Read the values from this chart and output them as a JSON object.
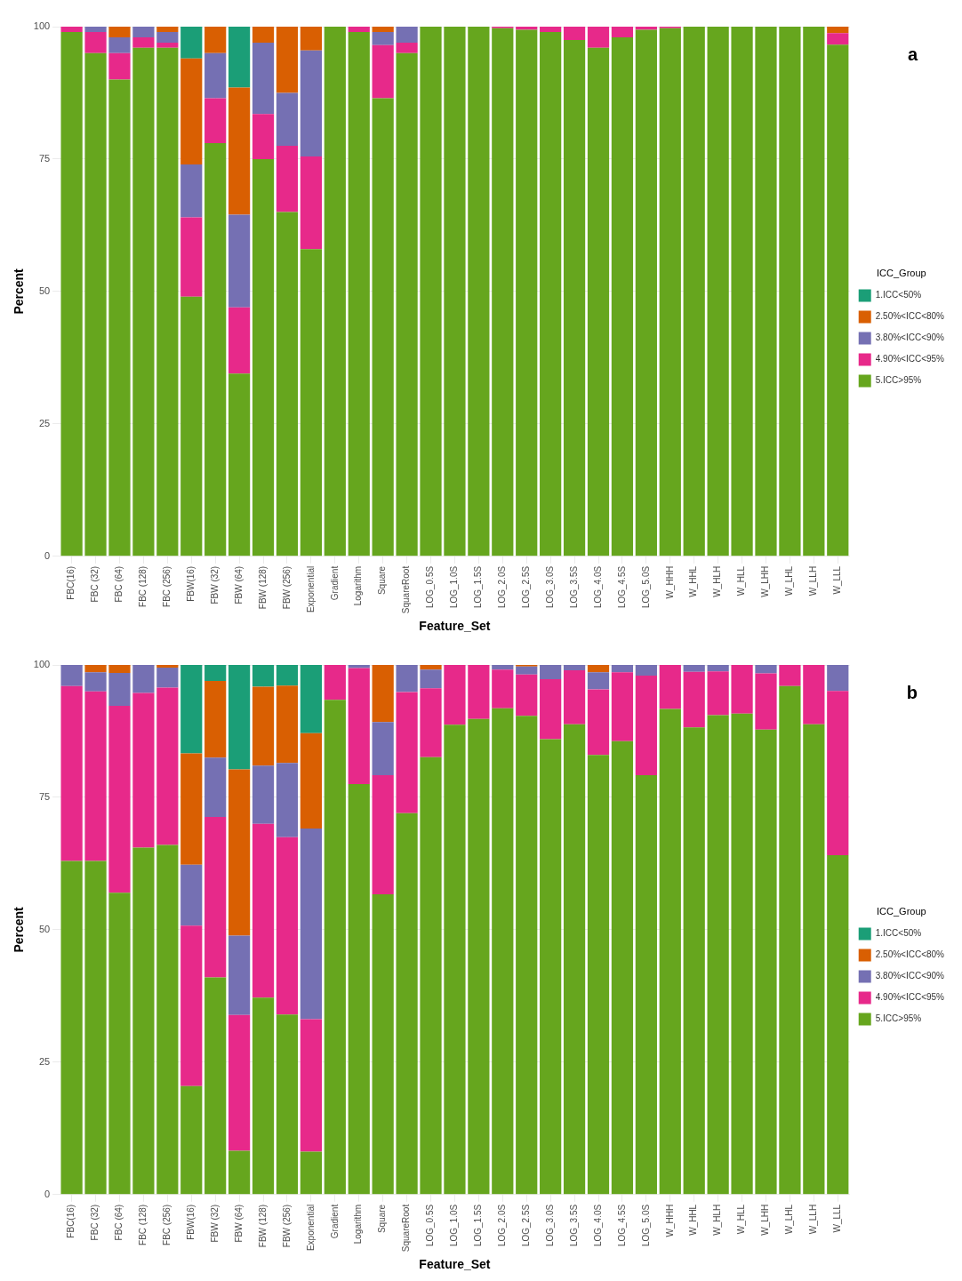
{
  "chart_data": [
    {
      "type": "bar",
      "stacked": true,
      "annotations": [
        "a"
      ],
      "xlabel": "Feature_Set",
      "ylabel": "Percent",
      "legend_title": "ICC_Group",
      "legend": "right",
      "grid": true,
      "ylim": [
        0,
        100
      ],
      "yticks": [
        0,
        25,
        50,
        75,
        100
      ],
      "categories": [
        "FBC(16)",
        "FBC (32)",
        "FBC (64)",
        "FBC (128)",
        "FBC (256)",
        "FBW(16)",
        "FBW (32)",
        "FBW (64)",
        "FBW (128)",
        "FBW (256)",
        "Exponential",
        "Gradient",
        "Logarithm",
        "Square",
        "SquareRoot",
        "LOG_0.5S",
        "LOG_1.0S",
        "LOG_1.5S",
        "LOG_2.0S",
        "LOG_2.5S",
        "LOG_3.0S",
        "LOG_3.5S",
        "LOG_4.0S",
        "LOG_4.5S",
        "LOG_5.0S",
        "W_HHH",
        "W_HHL",
        "W_HLH",
        "W_HLL",
        "W_LHH",
        "W_LHL",
        "W_LLH",
        "W_LLL"
      ],
      "series": [
        {
          "name": "5.ICC>95%",
          "color": "#66a61e",
          "values": [
            99,
            95,
            90,
            96,
            96,
            49,
            78,
            34.5,
            75,
            65,
            58,
            100,
            99,
            86.5,
            95,
            100,
            100,
            100,
            99.7,
            99.4,
            99,
            97.5,
            96,
            98,
            99.4,
            99.7,
            100,
            100,
            100,
            100,
            100,
            100,
            96.6
          ]
        },
        {
          "name": "4.90%<ICC<95%",
          "color": "#e7298a",
          "values": [
            1,
            4,
            5,
            2,
            1,
            15,
            8.5,
            12.5,
            8.5,
            12.5,
            17.5,
            0,
            1,
            10,
            2,
            0,
            0,
            0,
            0.3,
            0.6,
            1,
            2.5,
            4,
            2,
            0.6,
            0.3,
            0,
            0,
            0,
            0,
            0,
            0,
            2.2
          ]
        },
        {
          "name": "3.80%<ICC<90%",
          "color": "#7570b3",
          "values": [
            0,
            1,
            3,
            2,
            2,
            10,
            8.5,
            17.5,
            13.5,
            10,
            20,
            0,
            0,
            2.5,
            3,
            0,
            0,
            0,
            0,
            0,
            0,
            0,
            0,
            0,
            0,
            0,
            0,
            0,
            0,
            0,
            0,
            0,
            0
          ]
        },
        {
          "name": "2.50%<ICC<80%",
          "color": "#d95f02",
          "values": [
            0,
            0,
            2,
            0,
            1,
            20,
            5,
            24,
            3,
            12.5,
            4.5,
            0,
            0,
            1,
            0,
            0,
            0,
            0,
            0,
            0,
            0,
            0,
            0,
            0,
            0,
            0,
            0,
            0,
            0,
            0,
            0,
            0,
            1.2
          ]
        },
        {
          "name": "1.ICC<50%",
          "color": "#1b9e77",
          "values": [
            0,
            0,
            0,
            0,
            0,
            6,
            0,
            11.5,
            0,
            0,
            0,
            0,
            0,
            0,
            0,
            0,
            0,
            0,
            0,
            0,
            0,
            0,
            0,
            0,
            0,
            0,
            0,
            0,
            0,
            0,
            0,
            0,
            0
          ]
        }
      ]
    },
    {
      "type": "bar",
      "stacked": true,
      "annotations": [
        "b"
      ],
      "xlabel": "Feature_Set",
      "ylabel": "Percent",
      "legend_title": "ICC_Group",
      "legend": "right",
      "grid": true,
      "ylim": [
        0,
        100
      ],
      "yticks": [
        0,
        25,
        50,
        75,
        100
      ],
      "categories": [
        "FBC(16)",
        "FBC (32)",
        "FBC (64)",
        "FBC (128)",
        "FBC (256)",
        "FBW(16)",
        "FBW (32)",
        "FBW (64)",
        "FBW (128)",
        "FBW (256)",
        "Exponential",
        "Gradient",
        "Logarithm",
        "Square",
        "SquareRoot",
        "LOG_0.5S",
        "LOG_1.0S",
        "LOG_1.5S",
        "LOG_2.0S",
        "LOG_2.5S",
        "LOG_3.0S",
        "LOG_3.5S",
        "LOG_4.0S",
        "LOG_4.5S",
        "LOG_5.0S",
        "W_HHH",
        "W_HHL",
        "W_HLH",
        "W_HLL",
        "W_LHH",
        "W_LHL",
        "W_LLH",
        "W_LLL"
      ],
      "series": [
        {
          "name": "5.ICC>95%",
          "color": "#66a61e",
          "values": [
            63,
            63,
            57,
            65.5,
            66,
            20.5,
            41,
            8.3,
            37.2,
            34,
            8.1,
            93.4,
            77.5,
            56.7,
            72,
            82.6,
            88.7,
            89.8,
            91.8,
            90.4,
            86,
            88.8,
            83,
            85.6,
            79.2,
            91.7,
            88.2,
            90.5,
            90.8,
            87.8,
            96,
            88.8,
            64.1
          ]
        },
        {
          "name": "4.90%<ICC<95%",
          "color": "#e7298a",
          "values": [
            33,
            32,
            35.3,
            29.2,
            29.7,
            30.3,
            30.3,
            25.6,
            32.8,
            33.5,
            25,
            6.6,
            21.9,
            22.5,
            22.9,
            13,
            11.3,
            10.2,
            7.3,
            7.8,
            11.3,
            10.2,
            12.4,
            13,
            18.8,
            8.3,
            10.5,
            8.3,
            9.2,
            10.6,
            4,
            11.2,
            31
          ]
        },
        {
          "name": "3.80%<ICC<90%",
          "color": "#7570b3",
          "values": [
            4,
            3.6,
            6.2,
            5.3,
            3.8,
            11.5,
            11.2,
            15,
            11,
            14,
            36,
            0,
            0.6,
            10,
            5.1,
            3.5,
            0,
            0,
            0.9,
            1.5,
            2.7,
            1,
            3.2,
            1.4,
            2,
            0,
            1.3,
            1.2,
            0,
            1.6,
            0,
            0,
            4.9
          ]
        },
        {
          "name": "2.50%<ICC<80%",
          "color": "#d95f02",
          "values": [
            0,
            1.4,
            1.5,
            0,
            0.5,
            21,
            14.5,
            31.4,
            14.9,
            14.6,
            18,
            0,
            0,
            10.8,
            0,
            0.9,
            0,
            0,
            0,
            0.3,
            0,
            0,
            1.4,
            0,
            0,
            0,
            0,
            0,
            0,
            0,
            0,
            0,
            0
          ]
        },
        {
          "name": "1.ICC<50%",
          "color": "#1b9e77",
          "values": [
            0,
            0,
            0,
            0,
            0,
            16.7,
            3,
            19.7,
            4.1,
            3.9,
            12.9,
            0,
            0,
            0,
            0,
            0,
            0,
            0,
            0,
            0,
            0,
            0,
            0,
            0,
            0,
            0,
            0,
            0,
            0,
            0,
            0,
            0,
            0
          ]
        }
      ]
    }
  ]
}
